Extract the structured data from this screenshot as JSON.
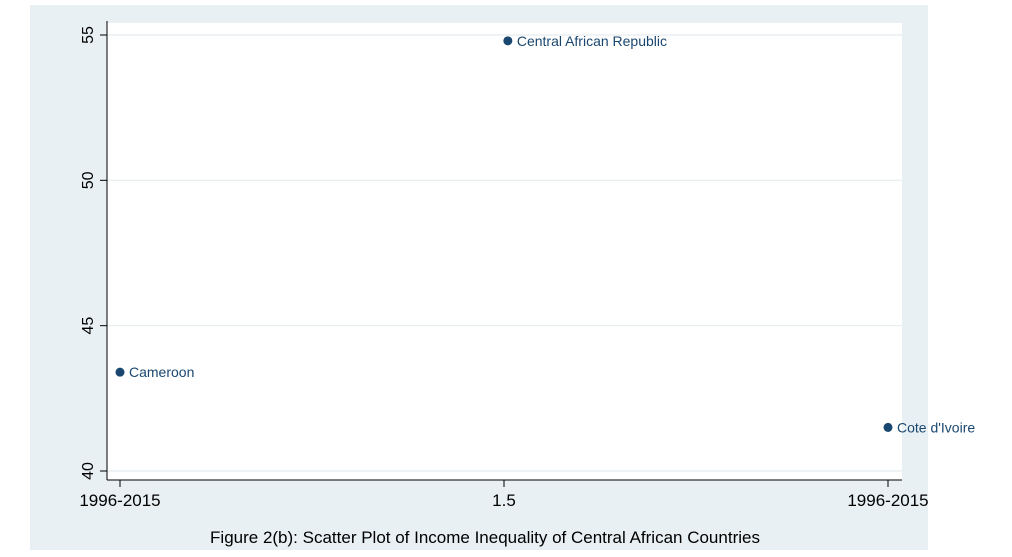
{
  "colors": {
    "outer_background": "#e9f0f3",
    "plot_background": "#ffffff",
    "grid": "#e6ecef",
    "axis": "#000000",
    "marker": "#1a476f",
    "label": "#1a476f",
    "text": "#000000"
  },
  "chart_data": {
    "type": "scatter",
    "title": "",
    "caption": "Figure 2(b): Scatter Plot of Income Inequality of Central African Countries",
    "xlabel": "",
    "ylabel": "",
    "xlim": [
      1,
      2
    ],
    "ylim": [
      40,
      55
    ],
    "xticks": [
      {
        "value": 1,
        "label": "1996-2015"
      },
      {
        "value": 1.5,
        "label": "1.5"
      },
      {
        "value": 2,
        "label": "1996-2015"
      }
    ],
    "yticks": [
      {
        "value": 40,
        "label": "40"
      },
      {
        "value": 45,
        "label": "45"
      },
      {
        "value": 50,
        "label": "50"
      },
      {
        "value": 55,
        "label": "55"
      }
    ],
    "grid": true,
    "points": [
      {
        "x": 1.0,
        "y": 43.4,
        "label": "Cameroon"
      },
      {
        "x": 1.505,
        "y": 54.8,
        "label": "Central African Republic"
      },
      {
        "x": 2.0,
        "y": 41.5,
        "label": "Cote d'Ivoire"
      }
    ]
  }
}
